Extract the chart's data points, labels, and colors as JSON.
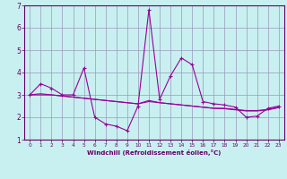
{
  "xlabel": "Windchill (Refroidissement éolien,°C)",
  "bg_color": "#c8f0f0",
  "line_color": "#990099",
  "marker_color": "#990099",
  "grid_color": "#9999bb",
  "axis_color": "#660066",
  "tick_color": "#660066",
  "xlim": [
    -0.5,
    23.5
  ],
  "ylim": [
    1,
    7
  ],
  "yticks": [
    1,
    2,
    3,
    4,
    5,
    6,
    7
  ],
  "xticks": [
    0,
    1,
    2,
    3,
    4,
    5,
    6,
    7,
    8,
    9,
    10,
    11,
    12,
    13,
    14,
    15,
    16,
    17,
    18,
    19,
    20,
    21,
    22,
    23
  ],
  "series1_x": [
    0,
    1,
    2,
    3,
    4,
    5,
    6,
    7,
    8,
    9,
    10,
    11,
    12,
    13,
    14,
    15,
    16,
    17,
    18,
    19,
    20,
    21,
    22,
    23
  ],
  "series1_y": [
    3.0,
    3.5,
    3.3,
    3.0,
    3.0,
    4.2,
    2.0,
    1.7,
    1.6,
    1.4,
    2.5,
    6.8,
    2.8,
    3.85,
    4.65,
    4.35,
    2.7,
    2.6,
    2.55,
    2.45,
    2.0,
    2.05,
    2.4,
    2.5
  ],
  "series2_x": [
    0,
    1,
    2,
    3,
    4,
    5,
    6,
    7,
    8,
    9,
    10,
    11,
    12,
    13,
    14,
    15,
    16,
    17,
    18,
    19,
    20,
    21,
    22,
    23
  ],
  "series2_y": [
    3.0,
    3.0,
    3.0,
    2.95,
    2.9,
    2.85,
    2.8,
    2.75,
    2.7,
    2.65,
    2.6,
    2.75,
    2.65,
    2.6,
    2.55,
    2.5,
    2.45,
    2.4,
    2.4,
    2.35,
    2.3,
    2.3,
    2.35,
    2.45
  ],
  "series3_x": [
    0,
    1,
    2,
    3,
    4,
    5,
    6,
    7,
    8,
    9,
    10,
    11,
    12,
    13,
    14,
    15,
    16,
    17,
    18,
    19,
    20,
    21,
    22,
    23
  ],
  "series3_y": [
    3.0,
    3.05,
    3.0,
    2.95,
    2.9,
    2.85,
    2.8,
    2.75,
    2.7,
    2.65,
    2.6,
    2.7,
    2.65,
    2.6,
    2.55,
    2.5,
    2.45,
    2.4,
    2.38,
    2.33,
    2.28,
    2.28,
    2.33,
    2.43
  ],
  "tick_fontsize_x": 4.2,
  "tick_fontsize_y": 5.5,
  "xlabel_fontsize": 5.0
}
